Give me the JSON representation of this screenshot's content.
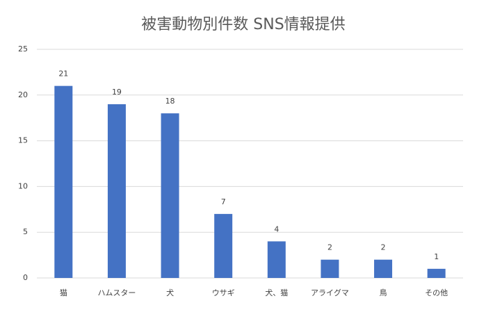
{
  "chart_data": {
    "type": "bar",
    "title": "被害動物別件数  SNS情報提供",
    "categories": [
      "猫",
      "ハムスター",
      "犬",
      "ウサギ",
      "犬、猫",
      "アライグマ",
      "鳥",
      "その他"
    ],
    "values": [
      21,
      19,
      18,
      7,
      4,
      2,
      2,
      1
    ],
    "color": "#4472c4",
    "ylim": [
      0,
      25
    ],
    "yticks": [
      0,
      5,
      10,
      15,
      20,
      25
    ],
    "grid": true
  }
}
